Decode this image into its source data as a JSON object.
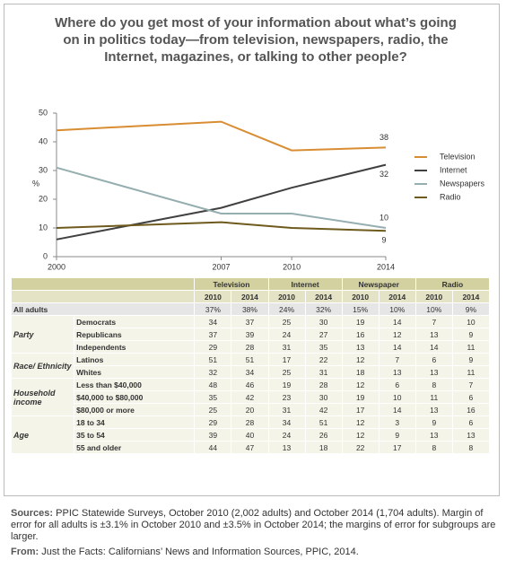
{
  "title": "Where do you get most of your information about what’s going on in politics today—from television, newspapers, radio, the Internet, magazines, or talking to other people?",
  "chart_data": {
    "type": "line",
    "x": [
      2000,
      2007,
      2010,
      2014
    ],
    "xlim": [
      2000,
      2014
    ],
    "xticks": [
      2000,
      2007,
      2010,
      2014
    ],
    "ylim": [
      0,
      50
    ],
    "yticks": [
      0,
      10,
      20,
      30,
      40,
      50
    ],
    "y_label": "%",
    "grid": false,
    "legend": "right",
    "series": [
      {
        "name": "Television",
        "color": "#d98d32",
        "values": [
          44,
          47,
          37,
          38
        ]
      },
      {
        "name": "Internet",
        "color": "#404040",
        "values": [
          6,
          17,
          24,
          32
        ]
      },
      {
        "name": "Newspapers",
        "color": "#95aeb0",
        "values": [
          31,
          15,
          15,
          10
        ]
      },
      {
        "name": "Radio",
        "color": "#6e5a1c",
        "values": [
          10,
          12,
          10,
          9
        ]
      }
    ]
  },
  "table": {
    "columns": [
      "Television",
      "Internet",
      "Newspaper",
      "Radio"
    ],
    "years": [
      "2010",
      "2014",
      "2010",
      "2014",
      "2010",
      "2014",
      "2010",
      "2014"
    ],
    "all_adults": {
      "label": "All adults",
      "values": [
        "37%",
        "38%",
        "24%",
        "32%",
        "15%",
        "10%",
        "10%",
        "9%"
      ]
    },
    "groups": [
      {
        "name": "Party",
        "rows": [
          {
            "label": "Democrats",
            "values": [
              "34",
              "37",
              "25",
              "30",
              "19",
              "14",
              "7",
              "10"
            ]
          },
          {
            "label": "Republicans",
            "values": [
              "37",
              "39",
              "24",
              "27",
              "16",
              "12",
              "13",
              "9"
            ]
          },
          {
            "label": "Independents",
            "values": [
              "29",
              "28",
              "31",
              "35",
              "13",
              "14",
              "14",
              "11"
            ]
          }
        ]
      },
      {
        "name": "Race/ Ethnicity",
        "rows": [
          {
            "label": "Latinos",
            "values": [
              "51",
              "51",
              "17",
              "22",
              "12",
              "7",
              "6",
              "9"
            ]
          },
          {
            "label": "Whites",
            "values": [
              "32",
              "34",
              "25",
              "31",
              "18",
              "13",
              "13",
              "11"
            ]
          }
        ]
      },
      {
        "name": "Household income",
        "rows": [
          {
            "label": "Less than $40,000",
            "values": [
              "48",
              "46",
              "19",
              "28",
              "12",
              "6",
              "8",
              "7"
            ]
          },
          {
            "label": "$40,000 to $80,000",
            "values": [
              "35",
              "42",
              "23",
              "30",
              "19",
              "10",
              "11",
              "6"
            ]
          },
          {
            "label": "$80,000 or more",
            "values": [
              "25",
              "20",
              "31",
              "42",
              "17",
              "14",
              "13",
              "16"
            ]
          }
        ]
      },
      {
        "name": "Age",
        "rows": [
          {
            "label": "18 to 34",
            "values": [
              "29",
              "28",
              "34",
              "51",
              "12",
              "3",
              "9",
              "6"
            ]
          },
          {
            "label": "35 to 54",
            "values": [
              "39",
              "40",
              "24",
              "26",
              "12",
              "9",
              "13",
              "13"
            ]
          },
          {
            "label": "55 and older",
            "values": [
              "44",
              "47",
              "13",
              "18",
              "22",
              "17",
              "8",
              "8"
            ]
          }
        ]
      }
    ]
  },
  "sources": {
    "label": "Sources:",
    "text": "PPIC Statewide Surveys, October 2010 (2,002 adults) and October 2014 (1,704 adults). Margin of error for all adults is ±3.1% in October 2010 and ±3.5% in October 2014; the margins of error for subgroups are larger."
  },
  "from": {
    "label": "From:",
    "text": "Just the Facts: Californians’ News and Information Sources, PPIC, 2014."
  }
}
